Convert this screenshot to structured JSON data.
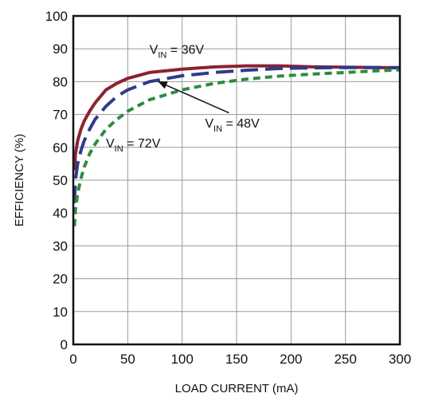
{
  "chart_data": {
    "type": "line",
    "title": "",
    "xlabel": "LOAD CURRENT (mA)",
    "ylabel": "EFFICIENCY (%)",
    "xlim": [
      0,
      300
    ],
    "ylim": [
      0,
      100
    ],
    "xticks": [
      0,
      50,
      100,
      150,
      200,
      250,
      300
    ],
    "yticks": [
      0,
      10,
      20,
      30,
      40,
      50,
      60,
      70,
      80,
      90,
      100
    ],
    "grid": true,
    "colors": {
      "vin36": "#8b2232",
      "vin48": "#2e3a8c",
      "vin72": "#2e8b3e",
      "grid": "#9a9a9a",
      "frame": "#111111"
    },
    "series": [
      {
        "key": "vin36",
        "style": "solid",
        "x": [
          1,
          2,
          4,
          7,
          10,
          15,
          20,
          30,
          40,
          50,
          70,
          100,
          130,
          160,
          190,
          220,
          250,
          280,
          300
        ],
        "y": [
          53,
          58,
          62,
          65.5,
          68,
          71,
          73.5,
          77.5,
          79.5,
          81,
          82.8,
          83.8,
          84.5,
          84.8,
          84.8,
          84.5,
          84.4,
          84.3,
          84.2
        ]
      },
      {
        "key": "vin48",
        "style": "long-dash",
        "x": [
          1,
          2,
          4,
          7,
          10,
          15,
          20,
          30,
          40,
          50,
          70,
          100,
          130,
          160,
          190,
          220,
          250,
          280,
          300
        ],
        "y": [
          43,
          50,
          55,
          59,
          62,
          65.5,
          68.5,
          72.5,
          75.5,
          77.5,
          80,
          81.8,
          82.8,
          83.5,
          84,
          84.2,
          84.3,
          84.3,
          84.3
        ]
      },
      {
        "key": "vin72",
        "style": "short-dash",
        "x": [
          1,
          2,
          4,
          7,
          10,
          15,
          20,
          30,
          40,
          50,
          70,
          100,
          130,
          160,
          190,
          220,
          250,
          280,
          300
        ],
        "y": [
          36,
          41,
          46,
          50.5,
          54,
          58,
          61,
          65.5,
          68.5,
          71,
          74.5,
          77.5,
          79.5,
          80.8,
          81.7,
          82.3,
          82.8,
          83.3,
          83.6
        ]
      }
    ],
    "annotations": [
      {
        "key": "vin36",
        "pre": "V",
        "sub": "IN",
        "post": " = 36V"
      },
      {
        "key": "vin48",
        "pre": "V",
        "sub": "IN",
        "post": " = 48V"
      },
      {
        "key": "vin72",
        "pre": "V",
        "sub": "IN",
        "post": " = 72V"
      }
    ]
  }
}
